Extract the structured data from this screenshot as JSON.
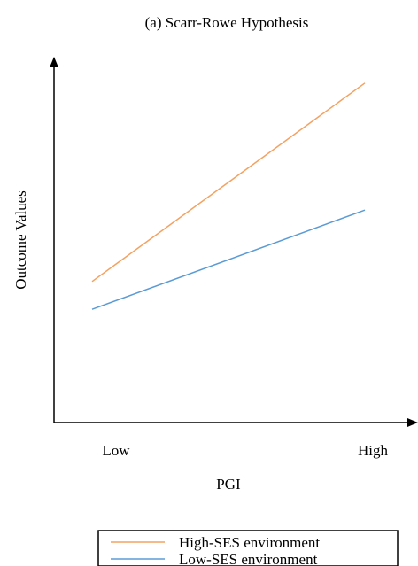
{
  "chart_data": {
    "type": "line",
    "title": "(a) Scarr-Rowe Hypothesis",
    "xlabel": "PGI",
    "ylabel": "Outcome Values",
    "categories": [
      "Low",
      "High"
    ],
    "ylim": [
      0,
      10
    ],
    "grid": false,
    "legend_position": "bottom",
    "series": [
      {
        "name": "High-SES environment",
        "values": [
          4.0,
          9.0
        ],
        "color": "#f4a261"
      },
      {
        "name": "Low-SES environment",
        "values": [
          3.3,
          5.8
        ],
        "color": "#5b9bd5"
      }
    ]
  }
}
